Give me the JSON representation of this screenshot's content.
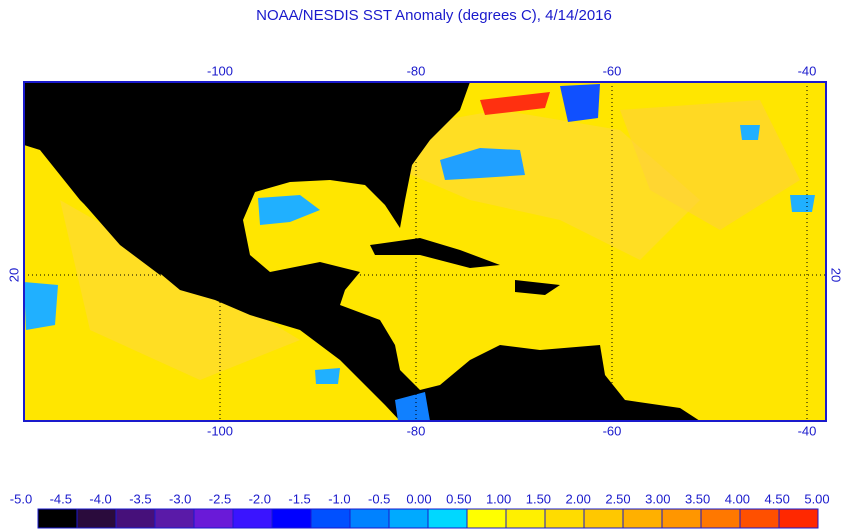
{
  "title": "NOAA/NESDIS SST Anomaly (degrees C), 4/14/2016",
  "map": {
    "lon_labels": [
      "-100",
      "-80",
      "-60",
      "-40"
    ],
    "lat_labels": [
      "20"
    ]
  },
  "colorbar": {
    "labels": [
      "-5.0",
      "-4.5",
      "-4.0",
      "-3.5",
      "-3.0",
      "-2.5",
      "-2.0",
      "-1.5",
      "-1.0",
      "-0.5",
      "0.00",
      "0.50",
      "1.00",
      "1.50",
      "2.00",
      "2.50",
      "3.00",
      "3.50",
      "4.00",
      "4.50",
      "5.00"
    ],
    "colors": [
      "#000000",
      "#2a0b3c",
      "#46107a",
      "#5a1aa8",
      "#6a1ad8",
      "#3a14ff",
      "#0000ff",
      "#0050ff",
      "#0082ff",
      "#00aaff",
      "#00d8ff",
      "#ffff00",
      "#fff000",
      "#ffdc00",
      "#ffc800",
      "#ffb000",
      "#ff9600",
      "#ff7800",
      "#ff5000",
      "#ff2800",
      "#ff0000"
    ]
  }
}
